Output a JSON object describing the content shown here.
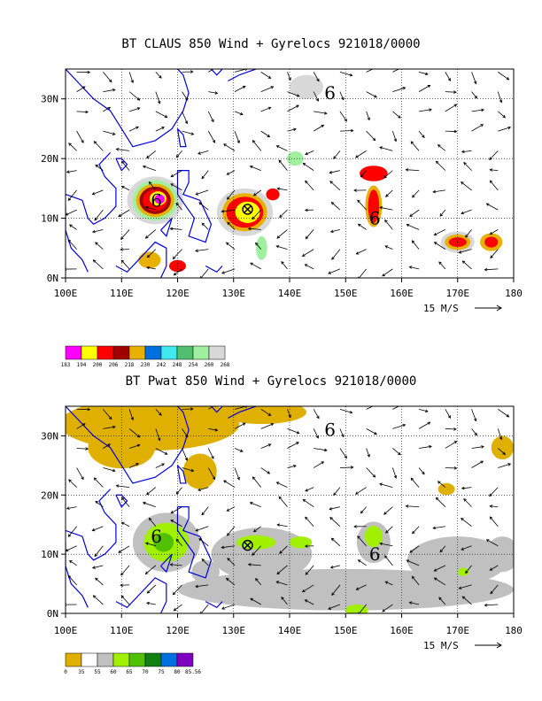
{
  "panels": [
    {
      "id": "top",
      "title": "BT CLAUS 850 Wind + Gyrelocs 921018/0000",
      "lat_labels": [
        "30N",
        "20N",
        "10N",
        "0N"
      ],
      "lon_labels": [
        "100E",
        "110E",
        "120E",
        "130E",
        "140E",
        "150E",
        "160E",
        "170E",
        "180"
      ],
      "ref_vector_label": "15 M/S",
      "colorbar_labels": [
        "183",
        "194",
        "200",
        "206",
        "218",
        "230",
        "242",
        "248",
        "254",
        "260",
        "268"
      ],
      "colorbar_colors": [
        "#ff00ff",
        "#ffff00",
        "#ff0000",
        "#a00000",
        "#e8b000",
        "#0070e0",
        "#40e8f0",
        "#50c070",
        "#a0f0a0",
        "#d8d8d8"
      ]
    },
    {
      "id": "bottom",
      "title": "BT Pwat 850 Wind + Gyrelocs 921018/0000",
      "lat_labels": [
        "30N",
        "20N",
        "10N",
        "0N"
      ],
      "lon_labels": [
        "100E",
        "110E",
        "120E",
        "130E",
        "140E",
        "150E",
        "160E",
        "170E",
        "180"
      ],
      "ref_vector_label": "15 M/S",
      "colorbar_labels": [
        "0",
        "35",
        "55",
        "60",
        "65",
        "70",
        "75",
        "80",
        "85.56"
      ],
      "colorbar_colors": [
        "#e0b000",
        "#ffffff",
        "#c0c0c0",
        "#a0f000",
        "#50c000",
        "#108010",
        "#0070e0",
        "#8000c0"
      ]
    }
  ],
  "map": {
    "lon_range": [
      100,
      180
    ],
    "lat_range": [
      0,
      35
    ],
    "gyre_symbol": "6",
    "gyre_locations": [
      [
        116,
        13
      ],
      [
        155,
        10
      ],
      [
        147,
        31
      ]
    ],
    "center_marker_icon": "circled-x-icon",
    "center_marker": [
      132.5,
      11.5
    ]
  }
}
